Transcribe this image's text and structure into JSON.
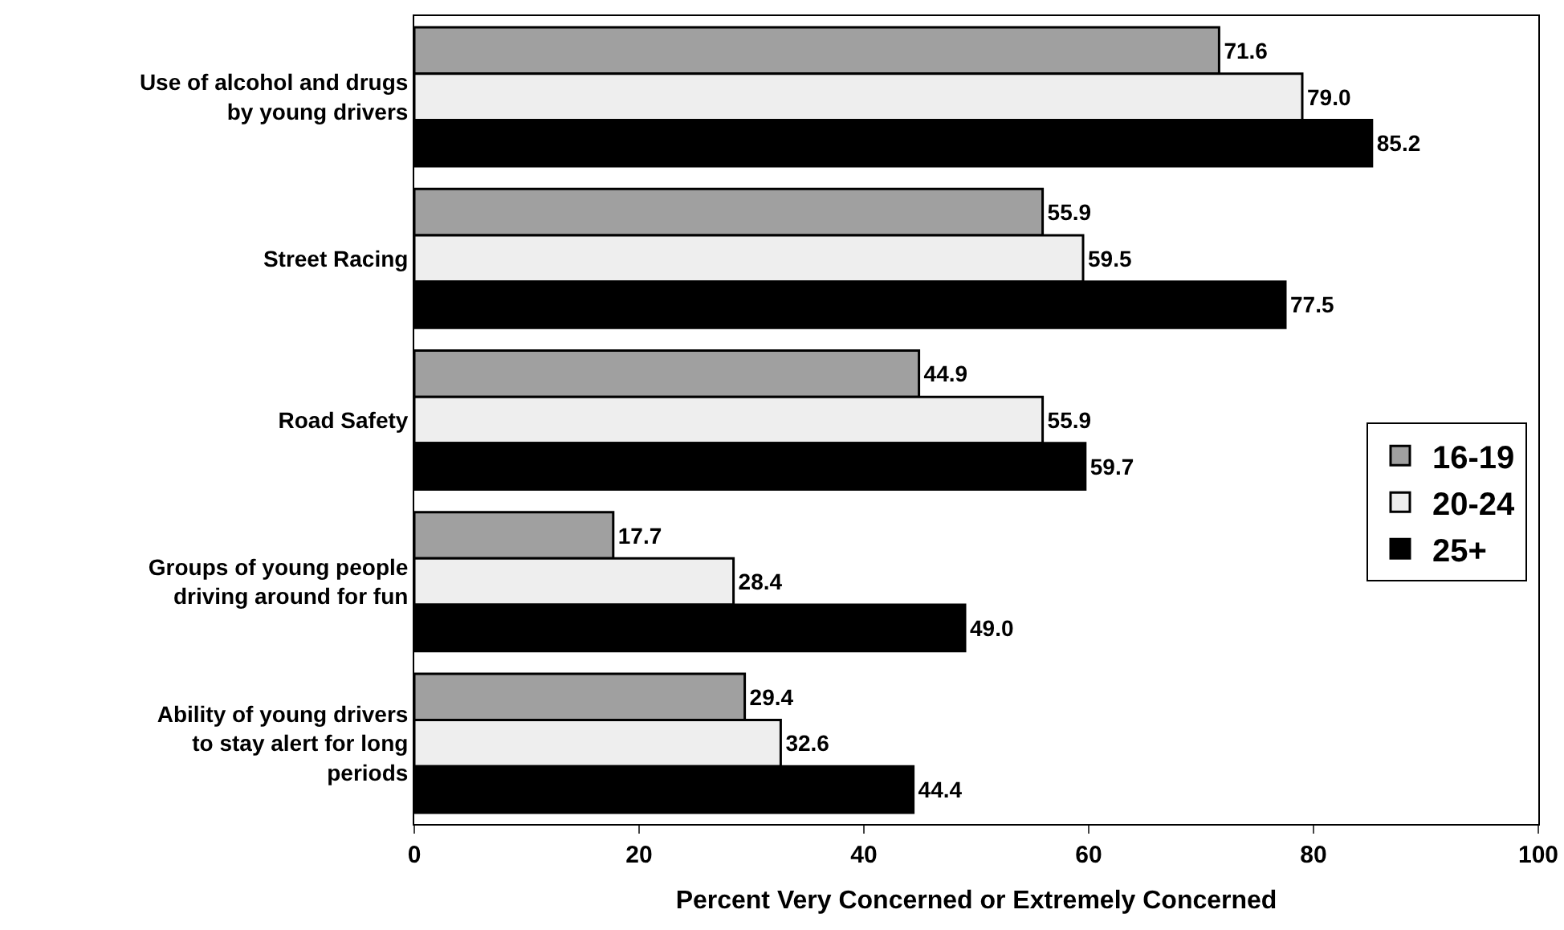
{
  "chart_data": {
    "type": "bar",
    "orientation": "horizontal",
    "xlabel": "Percent Very Concerned or Extremely Concerned",
    "categories": [
      "Use of alcohol and drugs by young drivers",
      "Street Racing",
      "Road Safety",
      "Groups of young people driving around for fun",
      "Ability of young drivers to stay alert for long periods"
    ],
    "series": [
      {
        "name": "16-19",
        "color": "#a0a0a0",
        "values": [
          71.6,
          55.9,
          44.9,
          17.7,
          29.4
        ],
        "value_labels": [
          "71.6",
          "55.9",
          "44.9",
          "17.7",
          "29.4"
        ]
      },
      {
        "name": "20-24",
        "color": "#eeeeee",
        "values": [
          79.0,
          59.5,
          55.9,
          28.4,
          32.6
        ],
        "value_labels": [
          "79.0",
          "59.5",
          "55.9",
          "28.4",
          "32.6"
        ]
      },
      {
        "name": "25+",
        "color": "#000000",
        "values": [
          85.2,
          77.5,
          59.7,
          49.0,
          44.4
        ],
        "value_labels": [
          "85.2",
          "77.5",
          "59.7",
          "49.0",
          "44.4"
        ]
      }
    ],
    "xlim": [
      0,
      100
    ],
    "xticks": [
      0,
      20,
      40,
      60,
      80,
      100
    ],
    "grid": false,
    "legend": "bottom right"
  }
}
